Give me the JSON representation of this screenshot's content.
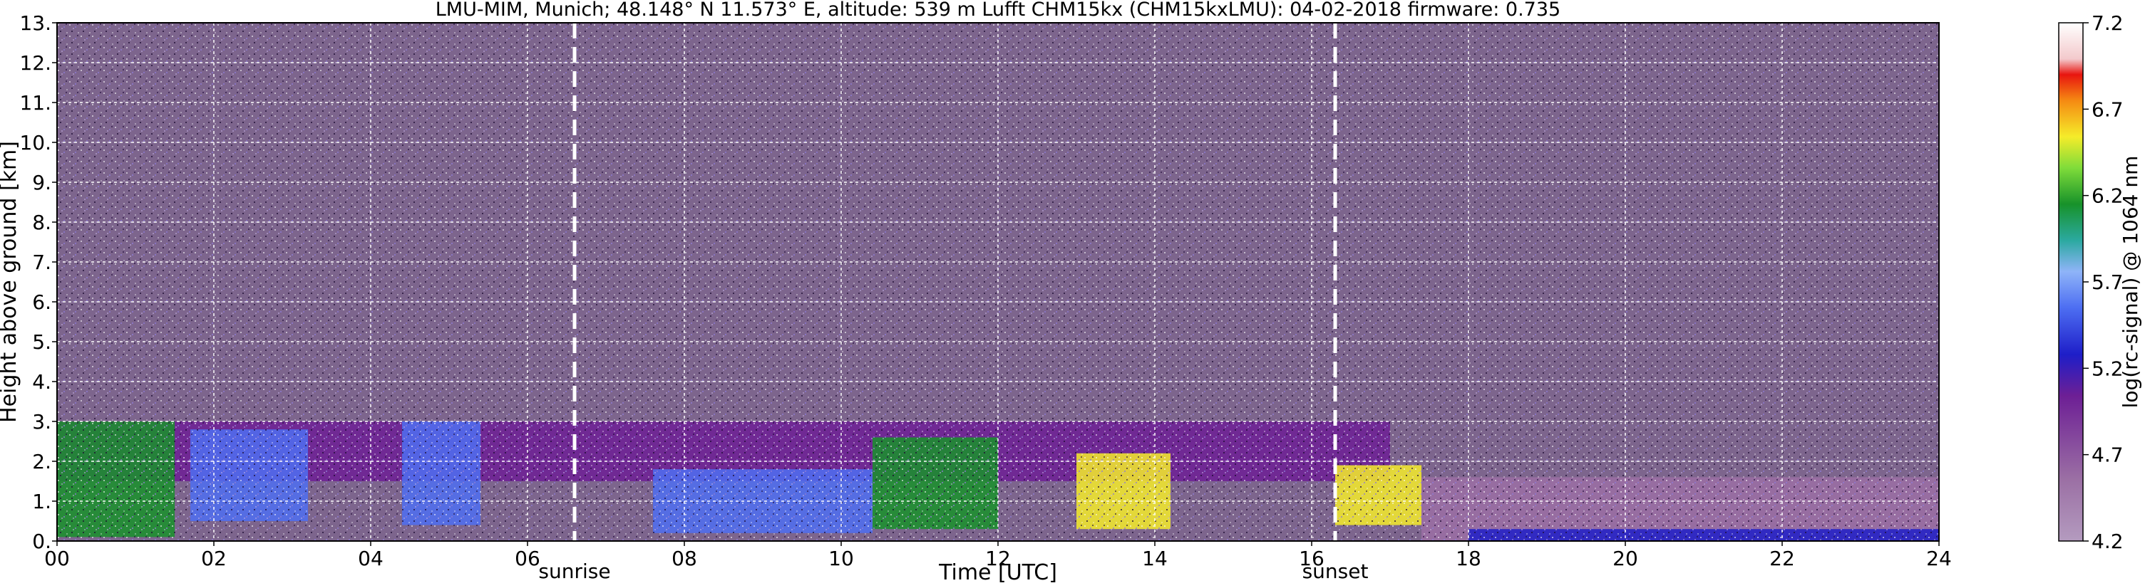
{
  "chart_data": {
    "type": "heatmap",
    "title": "LMU-MIM, Munich; 48.148° N 11.573° E, altitude: 539 m    Lufft CHM15kx (CHM15kxLMU): 04-02-2018    firmware: 0.735",
    "xlabel": "Time [UTC]",
    "ylabel": "Height above ground [km]",
    "xlim": [
      0,
      24
    ],
    "ylim": [
      0,
      13
    ],
    "x_ticks": [
      "00",
      "02",
      "04",
      "06",
      "08",
      "10",
      "12",
      "14",
      "16",
      "18",
      "20",
      "22",
      "24"
    ],
    "y_ticks": [
      "0.",
      "1.",
      "2.",
      "3.",
      "4.",
      "5.",
      "6.",
      "7.",
      "8.",
      "9.",
      "10.",
      "11.",
      "12.",
      "13."
    ],
    "grid": true,
    "colorbar": {
      "label": "log(rc-signal) @ 1064 nm",
      "range": [
        4.2,
        7.2
      ],
      "ticks": [
        "4.2",
        "4.7",
        "5.2",
        "5.7",
        "6.2",
        "6.7",
        "7.2"
      ]
    },
    "annotations": [
      {
        "label": "sunrise",
        "x": 6.6
      },
      {
        "label": "sunset",
        "x": 16.3
      }
    ],
    "layers": [
      {
        "x0": 0.0,
        "x1": 24.0,
        "y0": 0.0,
        "y1": 13.0,
        "level": 4.4
      },
      {
        "x0": 0.0,
        "x1": 17.0,
        "y0": 1.5,
        "y1": 3.0,
        "level": 5.0
      },
      {
        "x0": 0.0,
        "x1": 1.5,
        "y0": 0.1,
        "y1": 3.0,
        "level": 6.0
      },
      {
        "x0": 1.7,
        "x1": 3.2,
        "y0": 0.5,
        "y1": 2.8,
        "level": 5.5
      },
      {
        "x0": 4.4,
        "x1": 5.4,
        "y0": 0.4,
        "y1": 3.0,
        "level": 5.6
      },
      {
        "x0": 7.6,
        "x1": 10.4,
        "y0": 0.2,
        "y1": 1.8,
        "level": 5.6
      },
      {
        "x0": 10.4,
        "x1": 12.0,
        "y0": 0.3,
        "y1": 2.6,
        "level": 6.0
      },
      {
        "x0": 13.0,
        "x1": 14.2,
        "y0": 0.3,
        "y1": 2.2,
        "level": 6.3
      },
      {
        "x0": 16.3,
        "x1": 17.4,
        "y0": 0.4,
        "y1": 1.9,
        "level": 6.3
      },
      {
        "x0": 17.4,
        "x1": 24.0,
        "y0": 0.0,
        "y1": 1.6,
        "level": 4.8
      },
      {
        "x0": 18.0,
        "x1": 24.0,
        "y0": 0.0,
        "y1": 0.3,
        "level": 5.3
      }
    ]
  }
}
